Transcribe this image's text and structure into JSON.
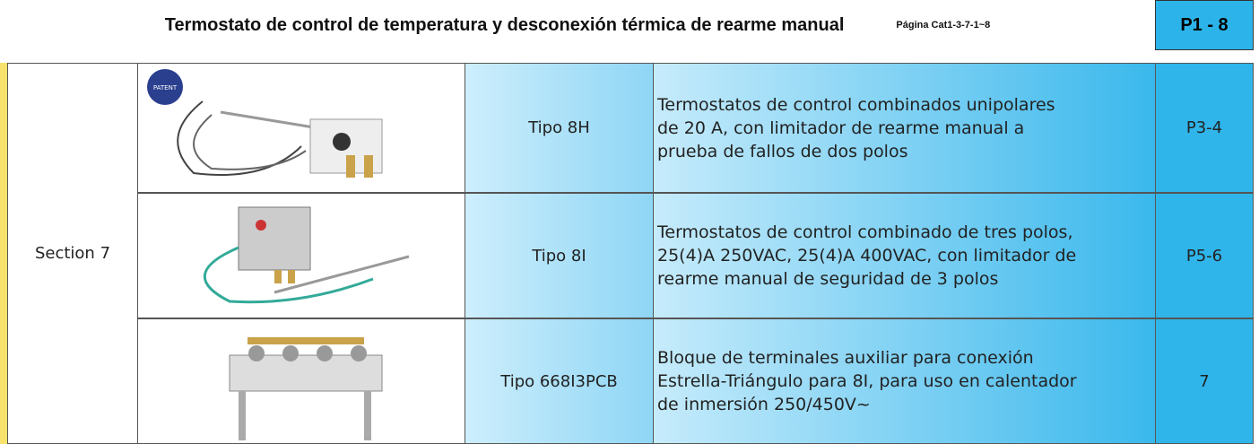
{
  "header": {
    "title": "Termostato de control de temperatura y desconexión térmica de rearme manual",
    "page_ref": "Página Cat1-3-7-1~8",
    "page_badge": "P1 - 8"
  },
  "table": {
    "section": "Section 7",
    "rows": [
      {
        "type": "Tipo 8H",
        "description": [
          "Termostatos de control combinados unipolares",
          "de 20 A, con limitador de rearme manual a",
          "prueba de fallos de dos polos"
        ],
        "page": "P3-4"
      },
      {
        "type": "Tipo 8I",
        "description": [
          "Termostatos de control combinado de tres polos,",
          "25(4)A 250VAC, 25(4)A 400VAC, con limitador de",
          "rearme manual de seguridad de 3 polos"
        ],
        "page": "P5-6"
      },
      {
        "type": "Tipo 668I3PCB",
        "description": [
          "Bloque de terminales auxiliar para conexión",
          "Estrella-Triángulo para 8I, para uso en calentador",
          "de inmersión 250/450V~"
        ],
        "page": "7"
      }
    ]
  }
}
